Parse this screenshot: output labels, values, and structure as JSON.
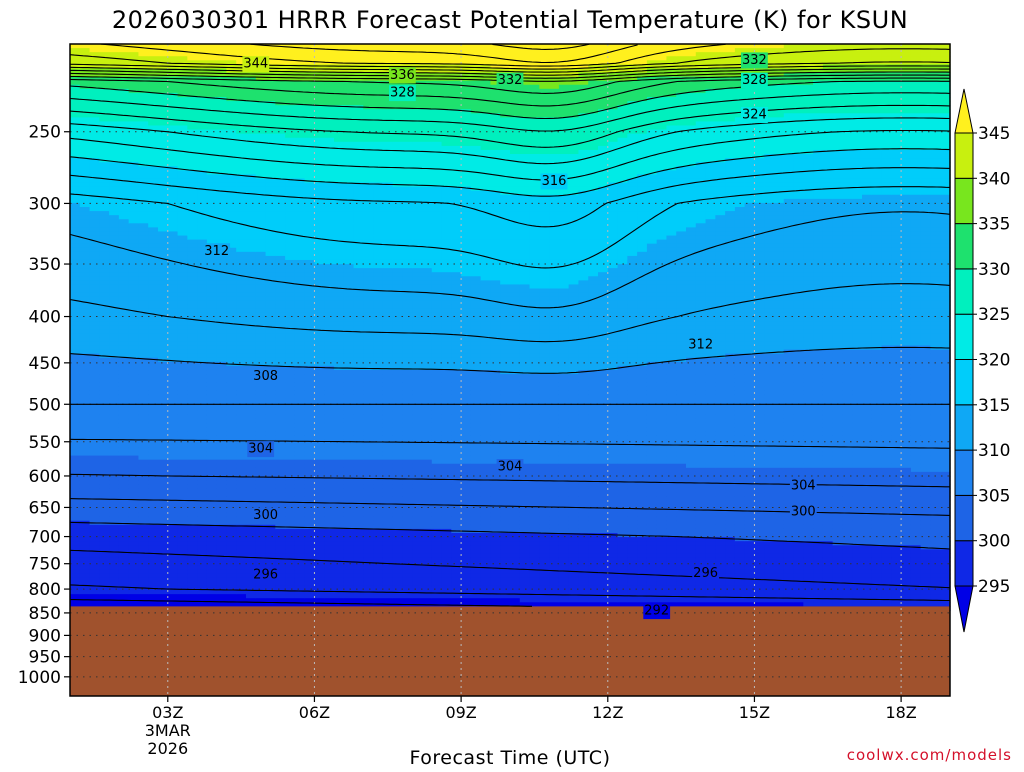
{
  "chart_data": {
    "type": "heatmap",
    "title": "2026030301 HRRR Forecast Potential Temperature (K) for KSUN",
    "xlabel": "Forecast Time (UTC)",
    "ylabel": "",
    "credit": "coolwx.com/models",
    "x_ticks": [
      {
        "hour": 3,
        "label": "03Z",
        "sub1": "3MAR",
        "sub2": "2026"
      },
      {
        "hour": 6,
        "label": "06Z"
      },
      {
        "hour": 9,
        "label": "09Z"
      },
      {
        "hour": 12,
        "label": "12Z"
      },
      {
        "hour": 15,
        "label": "15Z"
      },
      {
        "hour": 18,
        "label": "18Z"
      }
    ],
    "xlim_hours": [
      1,
      19
    ],
    "y_ticks_hPa": [
      250,
      300,
      350,
      400,
      450,
      500,
      550,
      600,
      650,
      700,
      750,
      800,
      850,
      900,
      950,
      1000
    ],
    "ylim_hPa": [
      200,
      1050
    ],
    "y_scale": "log",
    "grid": true,
    "colorbar": {
      "levels": [
        295,
        300,
        305,
        310,
        315,
        320,
        325,
        330,
        335,
        340,
        345
      ],
      "labels": [
        "295",
        "300",
        "305",
        "310",
        "315",
        "320",
        "325",
        "330",
        "335",
        "340",
        "345"
      ],
      "colors": [
        "#0000e6",
        "#0f28e6",
        "#1e64e6",
        "#1e82f0",
        "#0fa8f5",
        "#00cdfa",
        "#00ebe6",
        "#00f0be",
        "#1ee16e",
        "#78e61e",
        "#c8f00f",
        "#fff01e"
      ]
    },
    "ground_pressure_hPa": 836,
    "ground_color": "#a0522d",
    "contour_labels": [
      {
        "value": "344",
        "hour": 4.8,
        "p": 210
      },
      {
        "value": "336",
        "hour": 7.8,
        "p": 216
      },
      {
        "value": "332",
        "hour": 10.0,
        "p": 219
      },
      {
        "value": "328",
        "hour": 7.8,
        "p": 226
      },
      {
        "value": "332",
        "hour": 15.0,
        "p": 208
      },
      {
        "value": "328",
        "hour": 15.0,
        "p": 219
      },
      {
        "value": "324",
        "hour": 15.0,
        "p": 239
      },
      {
        "value": "316",
        "hour": 10.9,
        "p": 283
      },
      {
        "value": "312",
        "hour": 4.0,
        "p": 338
      },
      {
        "value": "312",
        "hour": 13.9,
        "p": 429
      },
      {
        "value": "308",
        "hour": 5.0,
        "p": 465
      },
      {
        "value": "304",
        "hour": 4.9,
        "p": 559
      },
      {
        "value": "304",
        "hour": 10.0,
        "p": 585
      },
      {
        "value": "304",
        "hour": 16.0,
        "p": 614
      },
      {
        "value": "300",
        "hour": 5.0,
        "p": 662
      },
      {
        "value": "300",
        "hour": 16.0,
        "p": 656
      },
      {
        "value": "296",
        "hour": 5.0,
        "p": 770
      },
      {
        "value": "296",
        "hour": 14.0,
        "p": 767
      },
      {
        "value": "292",
        "hour": 13.0,
        "p": 844
      }
    ],
    "theta_profile_t3Z": [
      {
        "p": 850,
        "theta": 292
      },
      {
        "p": 800,
        "theta": 296
      },
      {
        "p": 700,
        "theta": 299
      },
      {
        "p": 600,
        "theta": 304
      },
      {
        "p": 500,
        "theta": 308
      },
      {
        "p": 400,
        "theta": 312
      },
      {
        "p": 300,
        "theta": 316
      },
      {
        "p": 250,
        "theta": 324
      },
      {
        "p": 220,
        "theta": 332
      },
      {
        "p": 210,
        "theta": 344
      }
    ]
  }
}
